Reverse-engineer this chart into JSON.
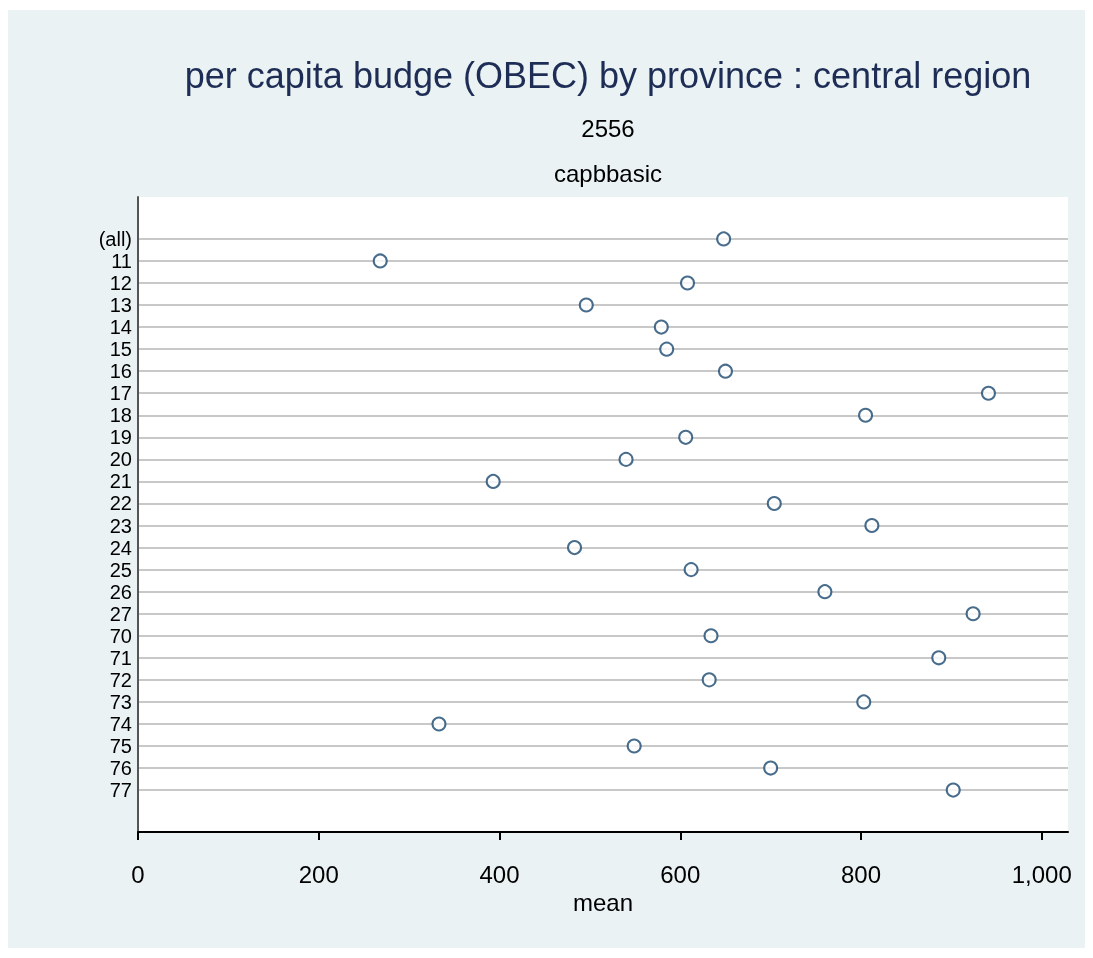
{
  "chart_data": {
    "type": "scatter",
    "orientation": "horizontal",
    "title": "per capita budge (OBEC) by province : central region",
    "subtitle": "2556",
    "annotations": [
      "capbbasic"
    ],
    "xlabel": "mean",
    "categories": [
      "(all)",
      "11",
      "12",
      "13",
      "14",
      "15",
      "16",
      "17",
      "18",
      "19",
      "20",
      "21",
      "22",
      "23",
      "24",
      "25",
      "26",
      "27",
      "70",
      "71",
      "72",
      "73",
      "74",
      "75",
      "76",
      "77"
    ],
    "values": [
      648,
      268,
      608,
      496,
      579,
      585,
      650,
      941,
      805,
      606,
      540,
      393,
      704,
      812,
      483,
      612,
      760,
      924,
      634,
      886,
      632,
      803,
      333,
      549,
      700,
      902
    ],
    "color": "#1a476f",
    "marker": "circle",
    "xlim": [
      0,
      1029
    ],
    "xticks": [
      0,
      200,
      400,
      600,
      800,
      {
        "value": 1000,
        "label": "1,000"
      }
    ],
    "grid": "y"
  }
}
